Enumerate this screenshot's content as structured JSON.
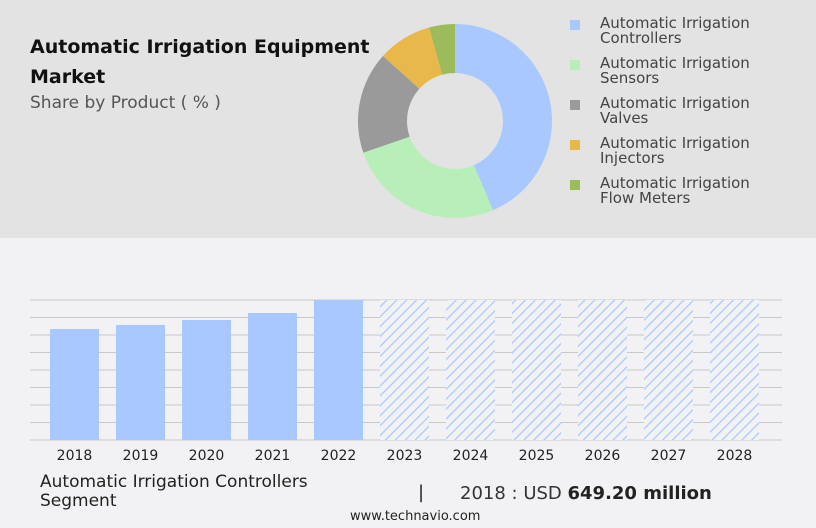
{
  "header": {
    "title": "Automatic Irrigation Equipment Market",
    "subtitle": "Share by Product ( % )"
  },
  "chart_data": [
    {
      "type": "pie",
      "donut": true,
      "categories": [
        "Automatic Irrigation Controllers",
        "Automatic Irrigation Sensors",
        "Automatic Irrigation Valves",
        "Automatic Irrigation Injectors",
        "Automatic Irrigation Flow Meters"
      ],
      "values": [
        43.6,
        26.1,
        17.0,
        9.0,
        4.3
      ],
      "colors": [
        "#a8c8ff",
        "#b8efb8",
        "#9a9a9a",
        "#e8b84a",
        "#9cbb5a"
      ],
      "legend_placement": "right"
    },
    {
      "type": "bar",
      "categories": [
        "2018",
        "2019",
        "2020",
        "2021",
        "2022",
        "2023",
        "2024",
        "2025",
        "2026",
        "2027",
        "2028"
      ],
      "values": [
        649.2,
        673,
        702,
        743,
        819,
        null,
        null,
        null,
        null,
        null,
        null
      ],
      "forecast_from": "2023",
      "bar_color": "#a8c8ff",
      "grid": true,
      "ylim": [
        0,
        819
      ]
    }
  ],
  "footer": {
    "segment": "Automatic Irrigation Controllers Segment",
    "separator": "|",
    "year_label": "2018 : USD ",
    "value": "649.20 million",
    "source": "www.technavio.com"
  }
}
